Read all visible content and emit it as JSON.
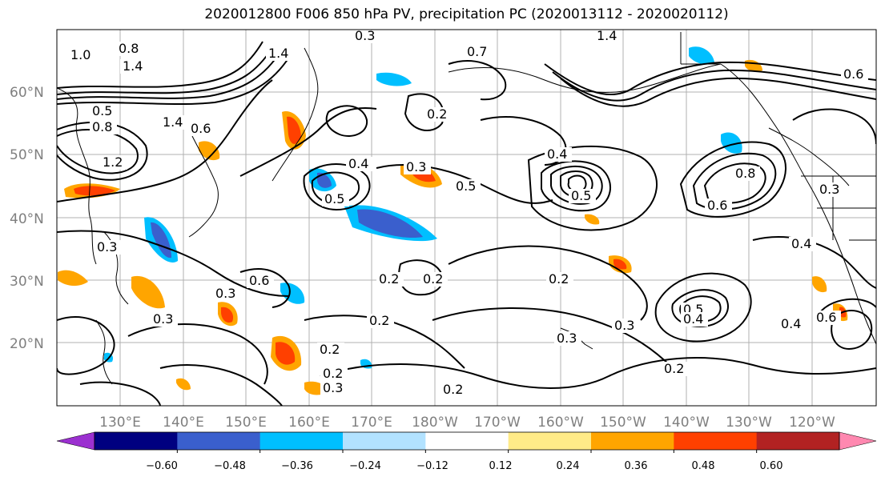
{
  "title": "2020012800 F006 850 hPa PV, precipitation PC (2020013112 - 2020020112)",
  "lat_labels": [
    "60°N",
    "50°N",
    "40°N",
    "30°N",
    "20°N"
  ],
  "lon_labels": [
    "130°E",
    "140°E",
    "150°E",
    "160°E",
    "170°E",
    "180°W",
    "170°W",
    "160°W",
    "150°W",
    "140°W",
    "130°W",
    "120°W"
  ],
  "contour_labels": [
    "1.0",
    "0.8",
    "1.4",
    "1.4",
    "0.3",
    "0.7",
    "1.4",
    "0.5",
    "0.8",
    "1.2",
    "1.4",
    "0.6",
    "0.2",
    "0.4",
    "0.5",
    "0.3",
    "0.5",
    "0.4",
    "0.3",
    "0.5",
    "0.6",
    "0.8",
    "0.3",
    "0.6",
    "0.4",
    "0.2",
    "0.2",
    "0.2",
    "0.3",
    "0.6",
    "0.2",
    "0.3",
    "0.2",
    "0.2",
    "0.3",
    "0.2",
    "0.3",
    "0.5",
    "0.4",
    "0.3",
    "0.4",
    "0.6",
    "0.2"
  ],
  "colorbar": {
    "colors": [
      "#9b30d0",
      "#000080",
      "#3a5fcd",
      "#00bfff",
      "#b2e2ff",
      "#ffffff",
      "#ffeb88",
      "#ffa500",
      "#ff4000",
      "#b22222",
      "#ff88b0"
    ],
    "tick_labels": [
      "−0.60",
      "−0.48",
      "−0.36",
      "−0.24",
      "−0.12",
      "0.12",
      "0.24",
      "0.36",
      "0.48",
      "0.60"
    ]
  }
}
